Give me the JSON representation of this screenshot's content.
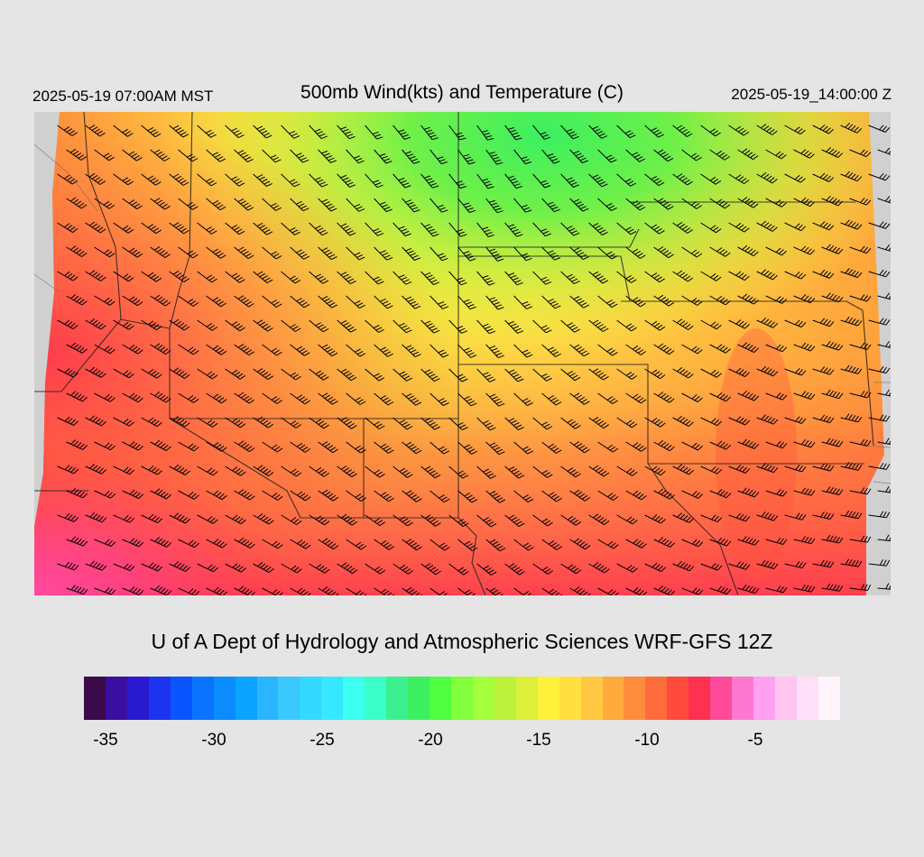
{
  "header": {
    "valid_local": "2025-05-19 07:00AM MST",
    "title": "500mb Wind(kts) and Temperature (C)",
    "valid_utc": "2025-05-19_14:00:00 Z"
  },
  "credit": "U of A Dept of Hydrology and Atmospheric Sciences WRF-GFS 12Z",
  "colorbar": {
    "colors": [
      "#3b0a4a",
      "#3a0ea0",
      "#2a1ad0",
      "#1c34ee",
      "#0a55ff",
      "#0a74ff",
      "#0a8cff",
      "#0aa4ff",
      "#2ab5ff",
      "#3ac8ff",
      "#35d8ff",
      "#36e8ff",
      "#3cfff0",
      "#3cffc8",
      "#3cf090",
      "#3cf060",
      "#50ff40",
      "#82ff3c",
      "#a4ff3c",
      "#bcf23c",
      "#dcf03c",
      "#fff03c",
      "#ffe040",
      "#ffc840",
      "#ffaa3c",
      "#ff8c3c",
      "#ff6c3c",
      "#ff4a3c",
      "#ff3050",
      "#ff4a9c",
      "#ff78d0",
      "#ffa0f0",
      "#ffc4f0",
      "#ffe0f8",
      "#fff4fc"
    ],
    "labels": [
      "-35",
      "-30",
      "-25",
      "-20",
      "-15",
      "-10",
      "-5"
    ]
  }
}
